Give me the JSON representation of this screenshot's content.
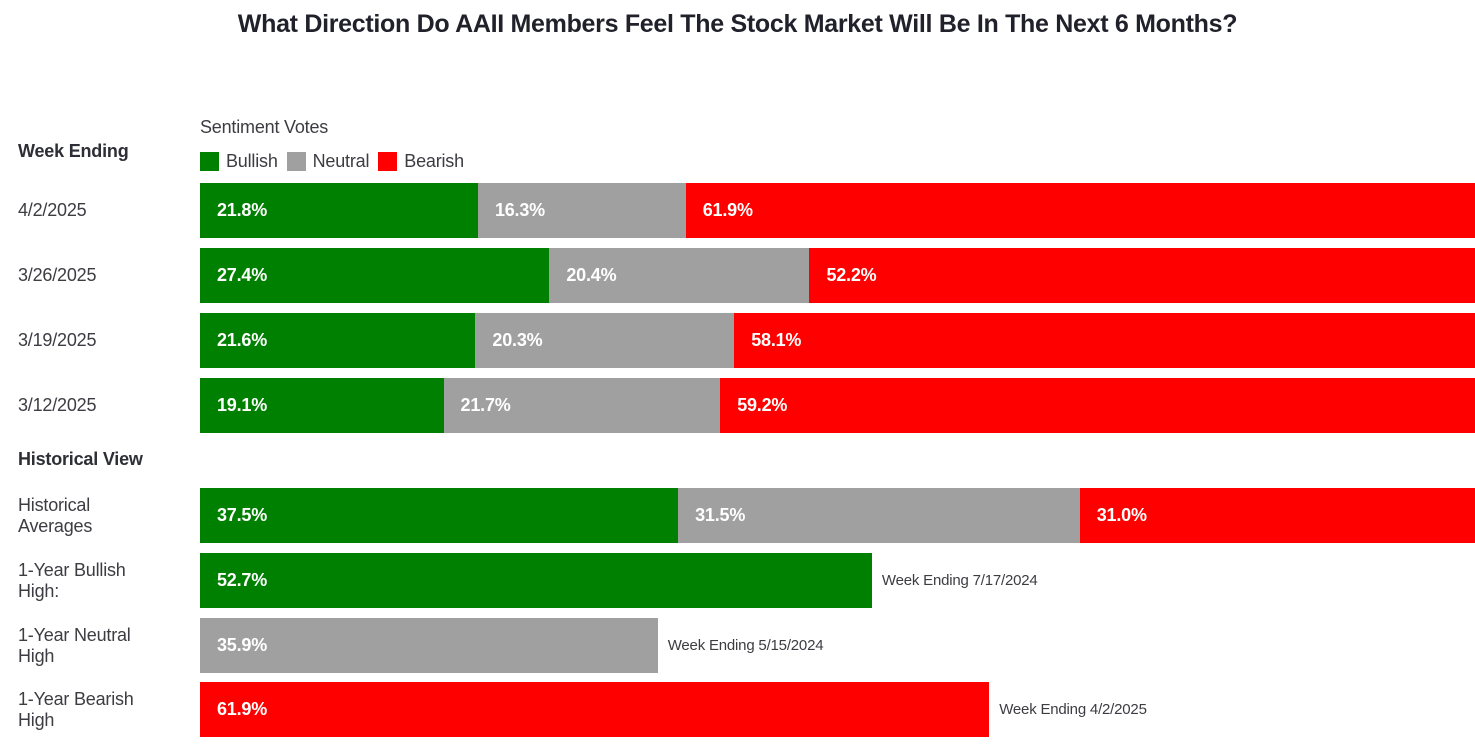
{
  "title": "What Direction Do AAII Members Feel The Stock Market Will Be In The Next 6 Months?",
  "left_column": {
    "week_ending_header": "Week Ending",
    "historical_header": "Historical View"
  },
  "legend": {
    "title": "Sentiment Votes",
    "items": [
      {
        "label": "Bullish",
        "color": "#008000"
      },
      {
        "label": "Neutral",
        "color": "#a0a0a0"
      },
      {
        "label": "Bearish",
        "color": "#ff0000"
      }
    ]
  },
  "chart_data": {
    "type": "bar",
    "orientation": "horizontal_stacked",
    "stack_total_percent": 100,
    "series_names": [
      "Bullish",
      "Neutral",
      "Bearish"
    ],
    "weekly_rows": [
      {
        "label": "4/2/2025",
        "values": [
          21.8,
          16.3,
          61.9
        ],
        "value_labels": [
          "21.8%",
          "16.3%",
          "61.9%"
        ]
      },
      {
        "label": "3/26/2025",
        "values": [
          27.4,
          20.4,
          52.2
        ],
        "value_labels": [
          "27.4%",
          "20.4%",
          "52.2%"
        ]
      },
      {
        "label": "3/19/2025",
        "values": [
          21.6,
          20.3,
          58.1
        ],
        "value_labels": [
          "21.6%",
          "20.3%",
          "58.1%"
        ]
      },
      {
        "label": "3/12/2025",
        "values": [
          19.1,
          21.7,
          59.2
        ],
        "value_labels": [
          "19.1%",
          "21.7%",
          "59.2%"
        ]
      }
    ],
    "historical_averages": {
      "label": "Historical Averages",
      "values": [
        37.5,
        31.5,
        31.0
      ],
      "value_labels": [
        "37.5%",
        "31.5%",
        "31.0%"
      ]
    },
    "one_year_highs": [
      {
        "label": "1-Year Bullish High:",
        "series": "Bullish",
        "value": 52.7,
        "value_label": "52.7%",
        "note": "Week Ending 7/17/2024",
        "color": "#008000"
      },
      {
        "label": "1-Year Neutral High",
        "series": "Neutral",
        "value": 35.9,
        "value_label": "35.9%",
        "note": "Week Ending 5/15/2024",
        "color": "#a0a0a0"
      },
      {
        "label": "1-Year Bearish High",
        "series": "Bearish",
        "value": 61.9,
        "value_label": "61.9%",
        "note": "Week Ending 4/2/2025",
        "color": "#ff0000"
      }
    ]
  },
  "colors": {
    "bullish": "#008000",
    "neutral": "#a0a0a0",
    "bearish": "#ff0000",
    "title_text": "#21212b",
    "body_text": "#3c3c42",
    "bar_value_text": "#ffffff",
    "background": "#ffffff"
  }
}
